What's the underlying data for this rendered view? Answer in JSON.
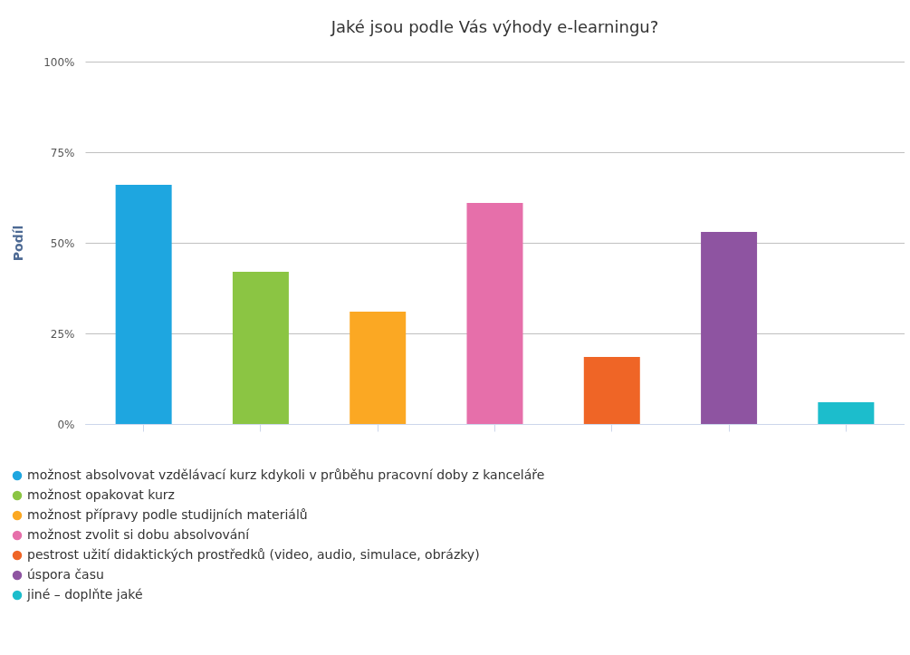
{
  "chart_data": {
    "type": "bar",
    "title": "Jaké jsou podle Vás výhody e-learningu?",
    "ylabel": "Podíl",
    "categories": [
      null,
      null,
      null,
      null,
      null,
      null,
      null
    ],
    "series": [
      {
        "name": "možnost absolvovat vzdělávací kurz kdykoli v průběhu pracovní doby z kanceláře",
        "color": "#1ea6e0",
        "values": [
          66,
          null,
          null,
          null,
          null,
          null,
          null
        ]
      },
      {
        "name": "možnost opakovat kurz",
        "color": "#8bc543",
        "values": [
          null,
          42,
          null,
          null,
          null,
          null,
          null
        ]
      },
      {
        "name": "možnost přípravy podle studijních materiálů",
        "color": "#fba823",
        "values": [
          null,
          null,
          31,
          null,
          null,
          null,
          null
        ]
      },
      {
        "name": "možnost zvolit si dobu absolvování",
        "color": "#e66faa",
        "values": [
          null,
          null,
          null,
          61,
          null,
          null,
          null
        ]
      },
      {
        "name": "pestrost užití didaktických prostředků (video, audio, simulace, obrázky)",
        "color": "#ef6526",
        "values": [
          null,
          null,
          null,
          null,
          18.5,
          null,
          null
        ]
      },
      {
        "name": "úspora času",
        "color": "#8e54a1",
        "values": [
          null,
          null,
          null,
          null,
          null,
          53,
          null
        ]
      },
      {
        "name": "jiné – doplňte jaké",
        "color": "#1cbdcc",
        "values": [
          null,
          null,
          null,
          null,
          null,
          null,
          6
        ]
      }
    ],
    "ylim": [
      0,
      100
    ],
    "yticks": [
      {
        "value": 0,
        "label": "0%"
      },
      {
        "value": 25,
        "label": "25%"
      },
      {
        "value": 50,
        "label": "50%"
      },
      {
        "value": 75,
        "label": "75%"
      },
      {
        "value": 100,
        "label": "100%"
      }
    ],
    "grid": "y",
    "legend": "bottom",
    "tick_labels": "y"
  }
}
